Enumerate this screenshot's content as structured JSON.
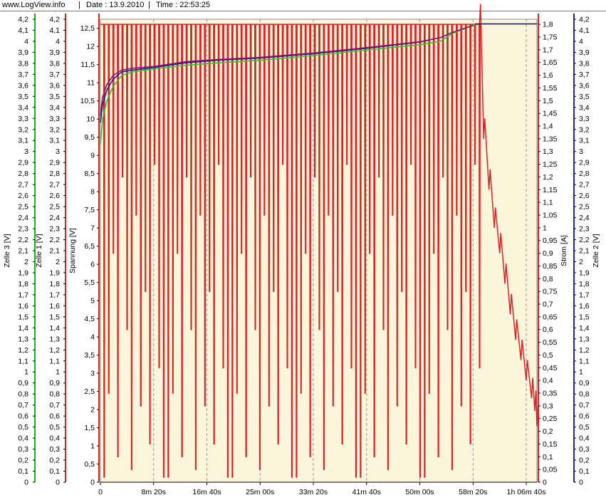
{
  "header": {
    "site": "www.LogView.info",
    "date": "Date : 13.9.2010",
    "time": "Time : 22:53:25",
    "separator": "|"
  },
  "chart_data": {
    "type": "line",
    "background": "#fbf5dc",
    "x_ticks": [
      "0",
      "8m 20s",
      "16m 40s",
      "25m 00s",
      "33m 20s",
      "41m 40s",
      "50m 00s",
      "58m 20s",
      "1h 06m 40s"
    ],
    "x_tick_seconds": [
      0,
      500,
      1000,
      1500,
      2000,
      2500,
      3000,
      3500,
      4000
    ],
    "x_range_seconds": [
      0,
      4100
    ],
    "grid": "vertical dashed",
    "axes": [
      {
        "id": "zelle3",
        "label": "Zelle 3 [V]",
        "side": "left",
        "color": "#22aa22",
        "range": [
          0,
          4.2
        ],
        "step": 0.1
      },
      {
        "id": "zelle1",
        "label": "Zelle 1 [V]",
        "side": "left",
        "color": "#dd2222",
        "range": [
          0,
          4.2
        ],
        "step": 0.1
      },
      {
        "id": "spannung",
        "label": "Spannung [V]",
        "side": "left",
        "color": "#dd2222",
        "range": [
          0,
          12.75
        ],
        "step": 0.5
      },
      {
        "id": "strom",
        "label": "Strom [A]",
        "side": "right",
        "color": "#dd2222",
        "range": [
          0,
          1.82
        ],
        "step": 0.05
      },
      {
        "id": "zelle2",
        "label": "Zelle 2 [V]",
        "side": "right",
        "color": "#2222aa",
        "range": [
          0,
          4.2
        ],
        "step": 0.1
      }
    ],
    "series": [
      {
        "axis": "spannung",
        "color": "#1a1a9a",
        "x": [
          0,
          20,
          60,
          120,
          200,
          300,
          500,
          800,
          1100,
          1500,
          2000,
          2500,
          3000,
          3200,
          3300,
          3500,
          3520,
          4100
        ],
        "y": [
          9.9,
          10.4,
          10.8,
          11.1,
          11.3,
          11.35,
          11.42,
          11.55,
          11.62,
          11.68,
          11.8,
          11.95,
          12.12,
          12.25,
          12.38,
          12.58,
          12.62,
          12.62
        ]
      },
      {
        "axis": "spannung",
        "color": "#22cc22",
        "x": [
          0,
          20,
          60,
          120,
          200,
          300,
          500,
          800,
          1100,
          1500,
          2000,
          2500,
          3000,
          3200,
          3300,
          3500,
          3520
        ],
        "y": [
          9.3,
          10.0,
          10.5,
          10.9,
          11.2,
          11.3,
          11.38,
          11.48,
          11.55,
          11.62,
          11.75,
          11.9,
          12.05,
          12.15,
          12.35,
          12.58,
          12.62
        ]
      },
      {
        "axis": "spannung",
        "color": "#8a1a6a",
        "x": [
          0,
          20,
          60,
          120,
          200,
          300,
          500,
          800,
          1100,
          1500,
          2000,
          2500,
          3000,
          3200,
          3300,
          3500
        ],
        "y": [
          10.1,
          10.6,
          10.95,
          11.2,
          11.35,
          11.4,
          11.45,
          11.58,
          11.64,
          11.7,
          11.82,
          11.97,
          12.13,
          12.25,
          12.38,
          12.58
        ]
      },
      {
        "axis": "strom",
        "color": "#dd2222",
        "description_pattern": "pulsed",
        "pulse_period_s": 43,
        "pulse_high": 1.8,
        "pulse_low_range": [
          0.02,
          1.25
        ],
        "pulses_until_s": 3560,
        "tail_x": [
          3560,
          3600,
          3650,
          3700,
          3750,
          3800,
          3850,
          3900,
          3950,
          4000,
          4050,
          4080,
          4100
        ],
        "tail_y": [
          1.8,
          1.35,
          1.15,
          1.0,
          0.9,
          0.78,
          0.66,
          0.56,
          0.48,
          0.4,
          0.33,
          0.28,
          0.22
        ]
      }
    ]
  }
}
